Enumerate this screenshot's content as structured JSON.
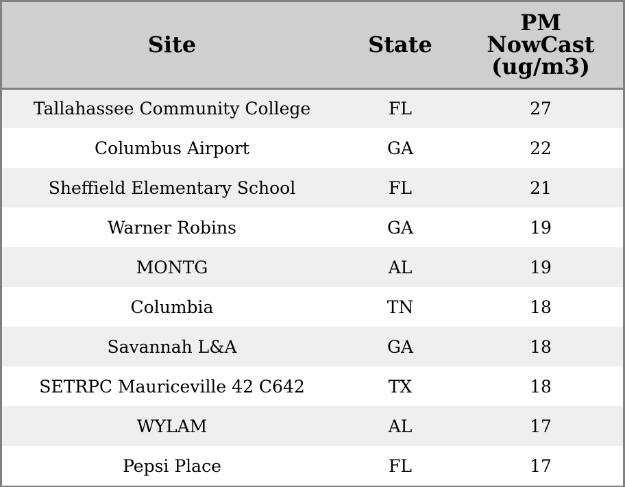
{
  "chart_data": {
    "type": "table",
    "columns": [
      {
        "key": "site",
        "label_lines": [
          "Site"
        ]
      },
      {
        "key": "state",
        "label_lines": [
          "State"
        ]
      },
      {
        "key": "pm",
        "label_lines": [
          "PM",
          "NowCast",
          "(ug/m3)"
        ]
      }
    ],
    "rows": [
      {
        "site": "Tallahassee Community College",
        "state": "FL",
        "pm": 27
      },
      {
        "site": "Columbus Airport",
        "state": "GA",
        "pm": 22
      },
      {
        "site": "Sheffield Elementary School",
        "state": "FL",
        "pm": 21
      },
      {
        "site": "Warner Robins",
        "state": "GA",
        "pm": 19
      },
      {
        "site": "MONTG",
        "state": "AL",
        "pm": 19
      },
      {
        "site": "Columbia",
        "state": "TN",
        "pm": 18
      },
      {
        "site": "Savannah L&A",
        "state": "GA",
        "pm": 18
      },
      {
        "site": "SETRPC Mauriceville 42 C642",
        "state": "TX",
        "pm": 18
      },
      {
        "site": "WYLAM",
        "state": "AL",
        "pm": 17
      },
      {
        "site": "Pepsi Place",
        "state": "FL",
        "pm": 17
      }
    ]
  },
  "colors": {
    "header_bg": "#cfcfcf",
    "row_alt_bg": "#efefef",
    "row_bg": "#ffffff",
    "border": "#808080"
  }
}
